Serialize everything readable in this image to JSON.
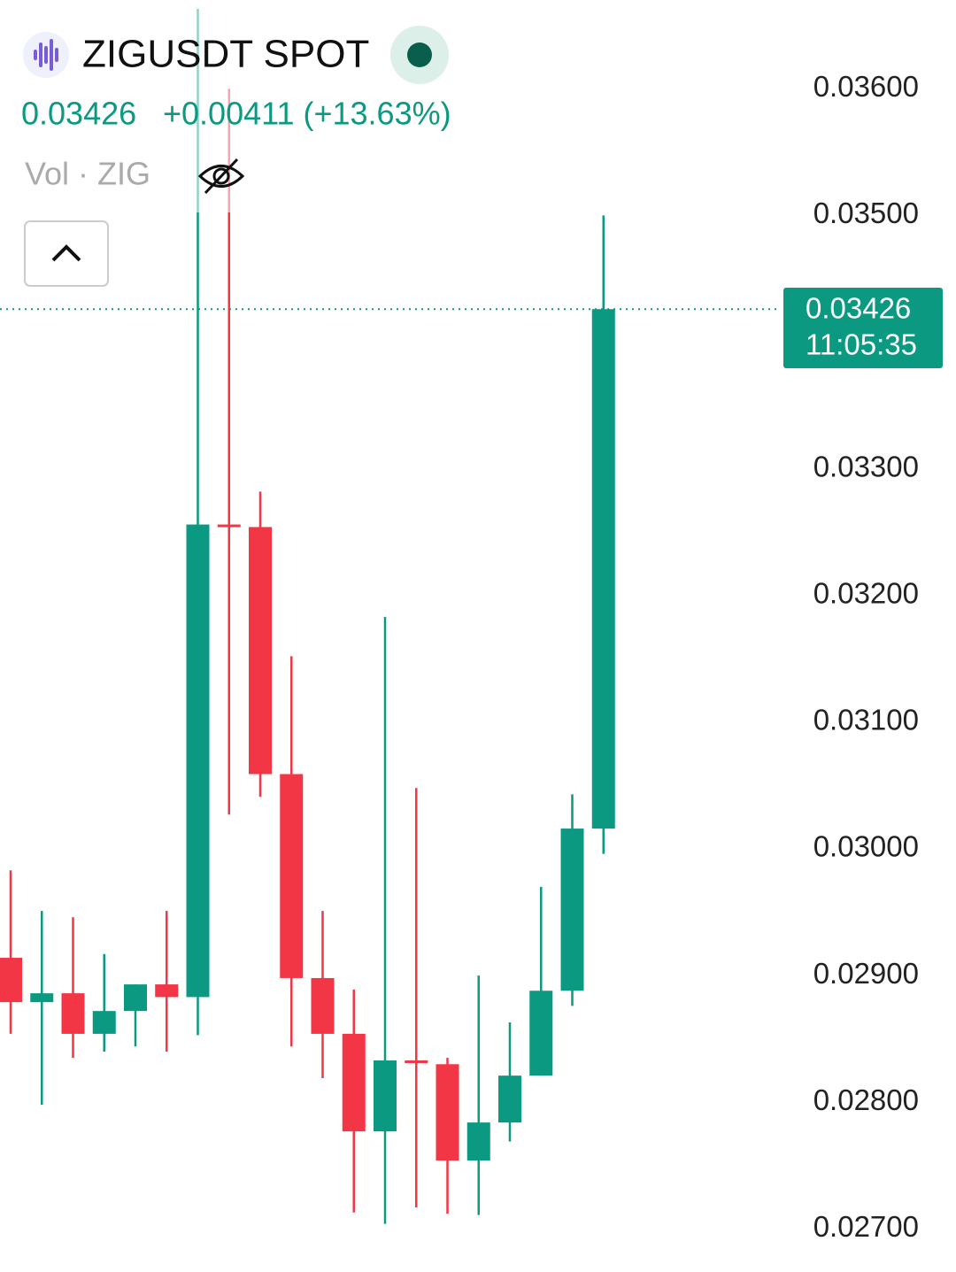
{
  "chart_data": {
    "type": "candlestick",
    "title": "ZIGUSDT SPOT",
    "last_price": 0.03426,
    "change": "+0.00411 (+13.63%)",
    "volume_label": "Vol · ZIG",
    "countdown": "11:05:35",
    "up_color": "#0c9981",
    "down_color": "#f23645",
    "grid": false,
    "categories": [
      null,
      null,
      null,
      null,
      null,
      null,
      null,
      null,
      null,
      null,
      null,
      null,
      null,
      null,
      null,
      null,
      null,
      null,
      null,
      null
    ],
    "open": [
      0.02914,
      0.02879,
      0.02886,
      0.02854,
      0.02872,
      0.02893,
      0.02883,
      0.03256,
      0.03254,
      0.03059,
      0.02898,
      0.02854,
      0.02777,
      0.02833,
      0.0283,
      0.02754,
      0.02784,
      0.02821,
      0.02888,
      0.03016
    ],
    "high": [
      0.02983,
      0.02951,
      0.02946,
      0.02917,
      0.02893,
      0.02951,
      0.03663,
      0.036,
      0.03282,
      0.03152,
      0.02951,
      0.02889,
      0.03183,
      0.03048,
      0.02835,
      0.029,
      0.02863,
      0.0297,
      0.03043,
      0.035
    ],
    "low": [
      0.02854,
      0.02798,
      0.02835,
      0.0284,
      0.02844,
      0.0284,
      0.02853,
      0.03027,
      0.03041,
      0.02844,
      0.02819,
      0.02713,
      0.02704,
      0.02717,
      0.02712,
      0.02711,
      0.02769,
      0.02821,
      0.02876,
      0.02996
    ],
    "close": [
      0.02879,
      0.02886,
      0.02854,
      0.02872,
      0.02893,
      0.02883,
      0.03256,
      0.03255,
      0.03059,
      0.02898,
      0.02854,
      0.02777,
      0.02833,
      0.02832,
      0.02754,
      0.02784,
      0.02821,
      0.02888,
      0.03016,
      0.03426
    ],
    "ylim": [
      0.02666,
      0.0367
    ],
    "yticks": [
      {
        "value": 0.036,
        "label": "0.03600"
      },
      {
        "value": 0.035,
        "label": "0.03500"
      },
      {
        "value": 0.033,
        "label": "0.03300"
      },
      {
        "value": 0.032,
        "label": "0.03200"
      },
      {
        "value": 0.031,
        "label": "0.03100"
      },
      {
        "value": 0.03,
        "label": "0.03000"
      },
      {
        "value": 0.029,
        "label": "0.02900"
      },
      {
        "value": 0.028,
        "label": "0.02800"
      },
      {
        "value": 0.027,
        "label": "0.02700"
      }
    ]
  }
}
